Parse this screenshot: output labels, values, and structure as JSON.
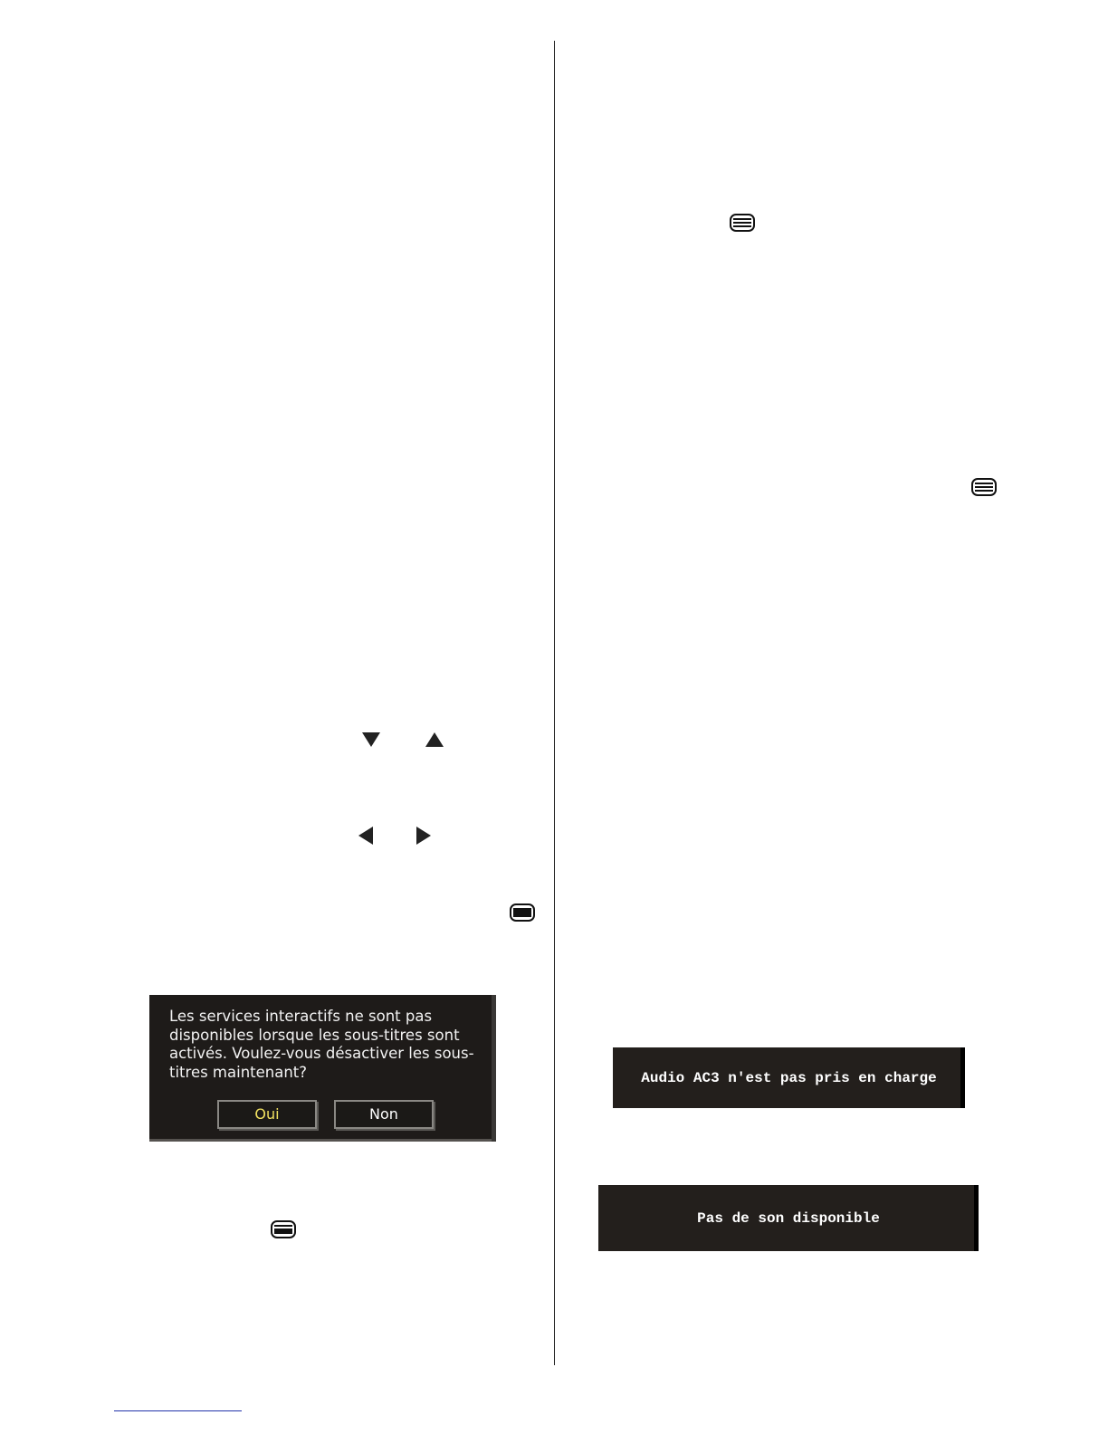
{
  "icons": [
    "teletext-icon",
    "arrow-down-icon",
    "arrow-up-icon",
    "arrow-left-icon",
    "arrow-right-icon"
  ],
  "subtitle_dialog": {
    "message": "Les services interactifs ne sont pas disponibles lorsque les sous-titres sont activés. Voulez-vous désactiver les sous-titres maintenant?",
    "yes_label": "Oui",
    "no_label": "Non",
    "yes_color": "#f0e060"
  },
  "ac3_message": "Audio AC3 n'est pas pris en charge",
  "no_audio_message": "Pas de son disponible"
}
